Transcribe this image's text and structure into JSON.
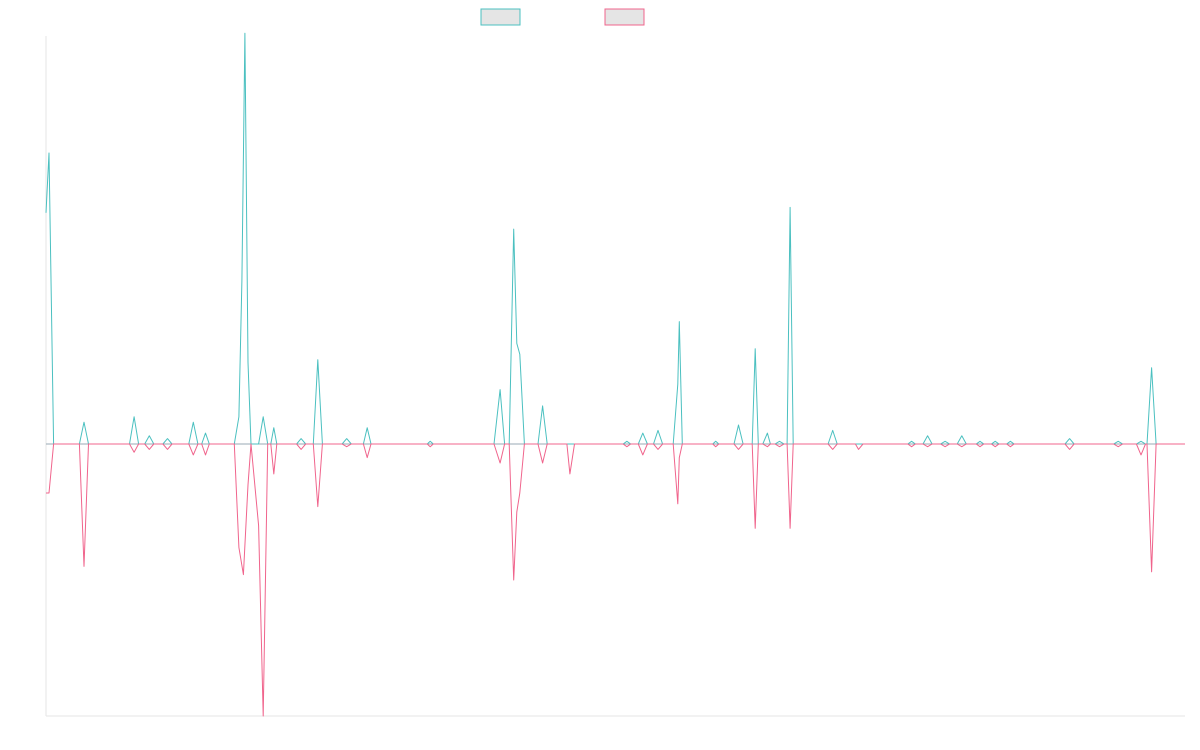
{
  "chart_data": {
    "type": "line",
    "title": "",
    "xlabel": "",
    "ylabel": "",
    "grid": false,
    "legend_position": "top-center",
    "ylim": [
      -100,
      150
    ],
    "series": [
      {
        "color": "#4bc0c0",
        "fill": "#e5e5e5",
        "points": [
          [
            0,
            85
          ],
          [
            4,
            107
          ],
          [
            10,
            0
          ],
          [
            44,
            0
          ],
          [
            50,
            8
          ],
          [
            56,
            0
          ],
          [
            110,
            0
          ],
          [
            116,
            10
          ],
          [
            122,
            0
          ],
          [
            130,
            0
          ],
          [
            136,
            3
          ],
          [
            142,
            0
          ],
          [
            154,
            0
          ],
          [
            160,
            2
          ],
          [
            166,
            0
          ],
          [
            188,
            0
          ],
          [
            194,
            8
          ],
          [
            200,
            0
          ],
          [
            205,
            0
          ],
          [
            210,
            4
          ],
          [
            215,
            0
          ],
          [
            248,
            0
          ],
          [
            254,
            10
          ],
          [
            258,
            60
          ],
          [
            262,
            151
          ],
          [
            266,
            30
          ],
          [
            270,
            0
          ],
          [
            280,
            0
          ],
          [
            286,
            10
          ],
          [
            292,
            0
          ],
          [
            296,
            0
          ],
          [
            300,
            6
          ],
          [
            304,
            0
          ],
          [
            330,
            0
          ],
          [
            336,
            2
          ],
          [
            342,
            0
          ],
          [
            352,
            0
          ],
          [
            358,
            31
          ],
          [
            364,
            0
          ],
          [
            390,
            0
          ],
          [
            396,
            2
          ],
          [
            402,
            0
          ],
          [
            418,
            0
          ],
          [
            423,
            6
          ],
          [
            428,
            0
          ],
          [
            502,
            0
          ],
          [
            506,
            1
          ],
          [
            510,
            0
          ],
          [
            590,
            0
          ],
          [
            598,
            20
          ],
          [
            604,
            0
          ],
          [
            610,
            0
          ],
          [
            616,
            79
          ],
          [
            620,
            37
          ],
          [
            624,
            33
          ],
          [
            630,
            0
          ],
          [
            648,
            0
          ],
          [
            654,
            14
          ],
          [
            660,
            0
          ],
          [
            686,
            0
          ],
          [
            690,
            0
          ],
          [
            696,
            0
          ],
          [
            760,
            0
          ],
          [
            765,
            1
          ],
          [
            770,
            0
          ],
          [
            780,
            0
          ],
          [
            786,
            4
          ],
          [
            792,
            0
          ],
          [
            800,
            0
          ],
          [
            806,
            5
          ],
          [
            812,
            0
          ],
          [
            826,
            0
          ],
          [
            832,
            22
          ],
          [
            834,
            45
          ],
          [
            838,
            0
          ],
          [
            878,
            0
          ],
          [
            882,
            1
          ],
          [
            886,
            0
          ],
          [
            906,
            0
          ],
          [
            912,
            7
          ],
          [
            918,
            0
          ],
          [
            930,
            0
          ],
          [
            934,
            35
          ],
          [
            938,
            0
          ],
          [
            944,
            0
          ],
          [
            950,
            4
          ],
          [
            954,
            0
          ],
          [
            960,
            0
          ],
          [
            966,
            1
          ],
          [
            972,
            0
          ],
          [
            976,
            0
          ],
          [
            980,
            87
          ],
          [
            984,
            0
          ],
          [
            1030,
            0
          ],
          [
            1036,
            5
          ],
          [
            1042,
            0
          ],
          [
            1066,
            0
          ],
          [
            1070,
            0
          ],
          [
            1076,
            0
          ],
          [
            1135,
            0
          ],
          [
            1140,
            1
          ],
          [
            1145,
            0
          ],
          [
            1155,
            0
          ],
          [
            1161,
            3
          ],
          [
            1167,
            0
          ],
          [
            1178,
            0
          ],
          [
            1184,
            1
          ],
          [
            1190,
            0
          ],
          [
            1200,
            0
          ],
          [
            1206,
            3
          ],
          [
            1212,
            0
          ],
          [
            1225,
            0
          ],
          [
            1230,
            1
          ],
          [
            1235,
            0
          ],
          [
            1245,
            0
          ],
          [
            1250,
            1
          ],
          [
            1255,
            0
          ],
          [
            1265,
            0
          ],
          [
            1270,
            1
          ],
          [
            1275,
            0
          ],
          [
            1342,
            0
          ],
          [
            1348,
            2
          ],
          [
            1354,
            0
          ],
          [
            1406,
            0
          ],
          [
            1412,
            1
          ],
          [
            1418,
            0
          ],
          [
            1436,
            0
          ],
          [
            1442,
            1
          ],
          [
            1448,
            0
          ],
          [
            1450,
            0
          ],
          [
            1456,
            28
          ],
          [
            1462,
            0
          ],
          [
            1500,
            0
          ]
        ]
      },
      {
        "color": "#f0648c",
        "fill": "#e5e5e5",
        "points": [
          [
            0,
            -18
          ],
          [
            4,
            -18
          ],
          [
            10,
            0
          ],
          [
            44,
            0
          ],
          [
            50,
            -45
          ],
          [
            56,
            0
          ],
          [
            110,
            0
          ],
          [
            116,
            -3
          ],
          [
            122,
            0
          ],
          [
            130,
            0
          ],
          [
            136,
            -2
          ],
          [
            142,
            0
          ],
          [
            154,
            0
          ],
          [
            160,
            -2
          ],
          [
            166,
            0
          ],
          [
            188,
            0
          ],
          [
            194,
            -4
          ],
          [
            200,
            0
          ],
          [
            205,
            0
          ],
          [
            210,
            -4
          ],
          [
            215,
            0
          ],
          [
            248,
            0
          ],
          [
            254,
            -38
          ],
          [
            260,
            -48
          ],
          [
            266,
            -15
          ],
          [
            270,
            0
          ],
          [
            280,
            -30
          ],
          [
            286,
            -100
          ],
          [
            292,
            0
          ],
          [
            296,
            0
          ],
          [
            300,
            -11
          ],
          [
            304,
            0
          ],
          [
            330,
            0
          ],
          [
            336,
            -2
          ],
          [
            342,
            0
          ],
          [
            352,
            0
          ],
          [
            358,
            -23
          ],
          [
            364,
            0
          ],
          [
            390,
            0
          ],
          [
            396,
            -1
          ],
          [
            402,
            0
          ],
          [
            418,
            0
          ],
          [
            423,
            -5
          ],
          [
            428,
            0
          ],
          [
            502,
            0
          ],
          [
            506,
            -1
          ],
          [
            510,
            0
          ],
          [
            590,
            0
          ],
          [
            598,
            -7
          ],
          [
            604,
            0
          ],
          [
            610,
            0
          ],
          [
            616,
            -50
          ],
          [
            620,
            -25
          ],
          [
            624,
            -18
          ],
          [
            630,
            0
          ],
          [
            648,
            0
          ],
          [
            654,
            -7
          ],
          [
            660,
            0
          ],
          [
            686,
            0
          ],
          [
            690,
            -11
          ],
          [
            696,
            0
          ],
          [
            760,
            0
          ],
          [
            765,
            -1
          ],
          [
            770,
            0
          ],
          [
            780,
            0
          ],
          [
            786,
            -4
          ],
          [
            792,
            0
          ],
          [
            800,
            0
          ],
          [
            806,
            -2
          ],
          [
            812,
            0
          ],
          [
            826,
            0
          ],
          [
            832,
            -22
          ],
          [
            834,
            -5
          ],
          [
            838,
            0
          ],
          [
            878,
            0
          ],
          [
            882,
            -1
          ],
          [
            886,
            0
          ],
          [
            906,
            0
          ],
          [
            912,
            -2
          ],
          [
            918,
            0
          ],
          [
            930,
            0
          ],
          [
            934,
            -31
          ],
          [
            938,
            0
          ],
          [
            944,
            0
          ],
          [
            950,
            -1
          ],
          [
            954,
            0
          ],
          [
            960,
            0
          ],
          [
            966,
            -1
          ],
          [
            972,
            0
          ],
          [
            976,
            0
          ],
          [
            980,
            -31
          ],
          [
            984,
            0
          ],
          [
            1030,
            0
          ],
          [
            1036,
            -2
          ],
          [
            1042,
            0
          ],
          [
            1066,
            0
          ],
          [
            1070,
            -2
          ],
          [
            1076,
            0
          ],
          [
            1135,
            0
          ],
          [
            1140,
            -1
          ],
          [
            1145,
            0
          ],
          [
            1155,
            0
          ],
          [
            1161,
            -1
          ],
          [
            1167,
            0
          ],
          [
            1178,
            0
          ],
          [
            1184,
            -1
          ],
          [
            1190,
            0
          ],
          [
            1200,
            0
          ],
          [
            1206,
            -1
          ],
          [
            1212,
            0
          ],
          [
            1225,
            0
          ],
          [
            1230,
            -1
          ],
          [
            1235,
            0
          ],
          [
            1245,
            0
          ],
          [
            1250,
            -1
          ],
          [
            1255,
            0
          ],
          [
            1265,
            0
          ],
          [
            1270,
            -1
          ],
          [
            1275,
            0
          ],
          [
            1342,
            0
          ],
          [
            1348,
            -2
          ],
          [
            1354,
            0
          ],
          [
            1406,
            0
          ],
          [
            1412,
            -1
          ],
          [
            1418,
            0
          ],
          [
            1436,
            0
          ],
          [
            1442,
            -4
          ],
          [
            1448,
            0
          ],
          [
            1450,
            0
          ],
          [
            1456,
            -47
          ],
          [
            1462,
            0
          ],
          [
            1500,
            0
          ]
        ]
      }
    ]
  }
}
